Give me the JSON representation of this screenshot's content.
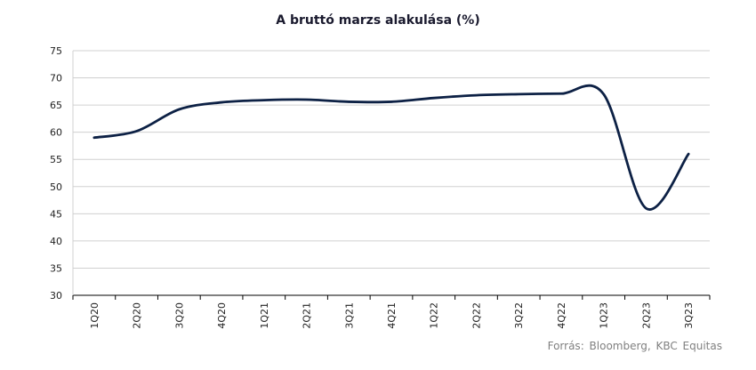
{
  "chart_data": {
    "type": "line",
    "title": "A bruttó marzs alakulása (%)",
    "xlabel": "",
    "ylabel": "",
    "ylim": [
      30,
      75
    ],
    "yticks": [
      30,
      35,
      40,
      45,
      50,
      55,
      60,
      65,
      70,
      75
    ],
    "grid": true,
    "categories": [
      "1Q20",
      "2Q20",
      "3Q20",
      "4Q20",
      "1Q21",
      "2Q21",
      "3Q21",
      "4Q21",
      "1Q22",
      "2Q22",
      "3Q22",
      "4Q22",
      "1Q23",
      "2Q23",
      "3Q23"
    ],
    "series": [
      {
        "values": [
          59.0,
          60.2,
          64.2,
          65.5,
          65.9,
          66.0,
          65.6,
          65.6,
          66.3,
          66.8,
          67.0,
          67.1,
          67.0,
          46.0,
          56.0
        ],
        "color": "#0d2145"
      }
    ]
  },
  "source": "Forrás: Bloomberg, KBC Equitas"
}
